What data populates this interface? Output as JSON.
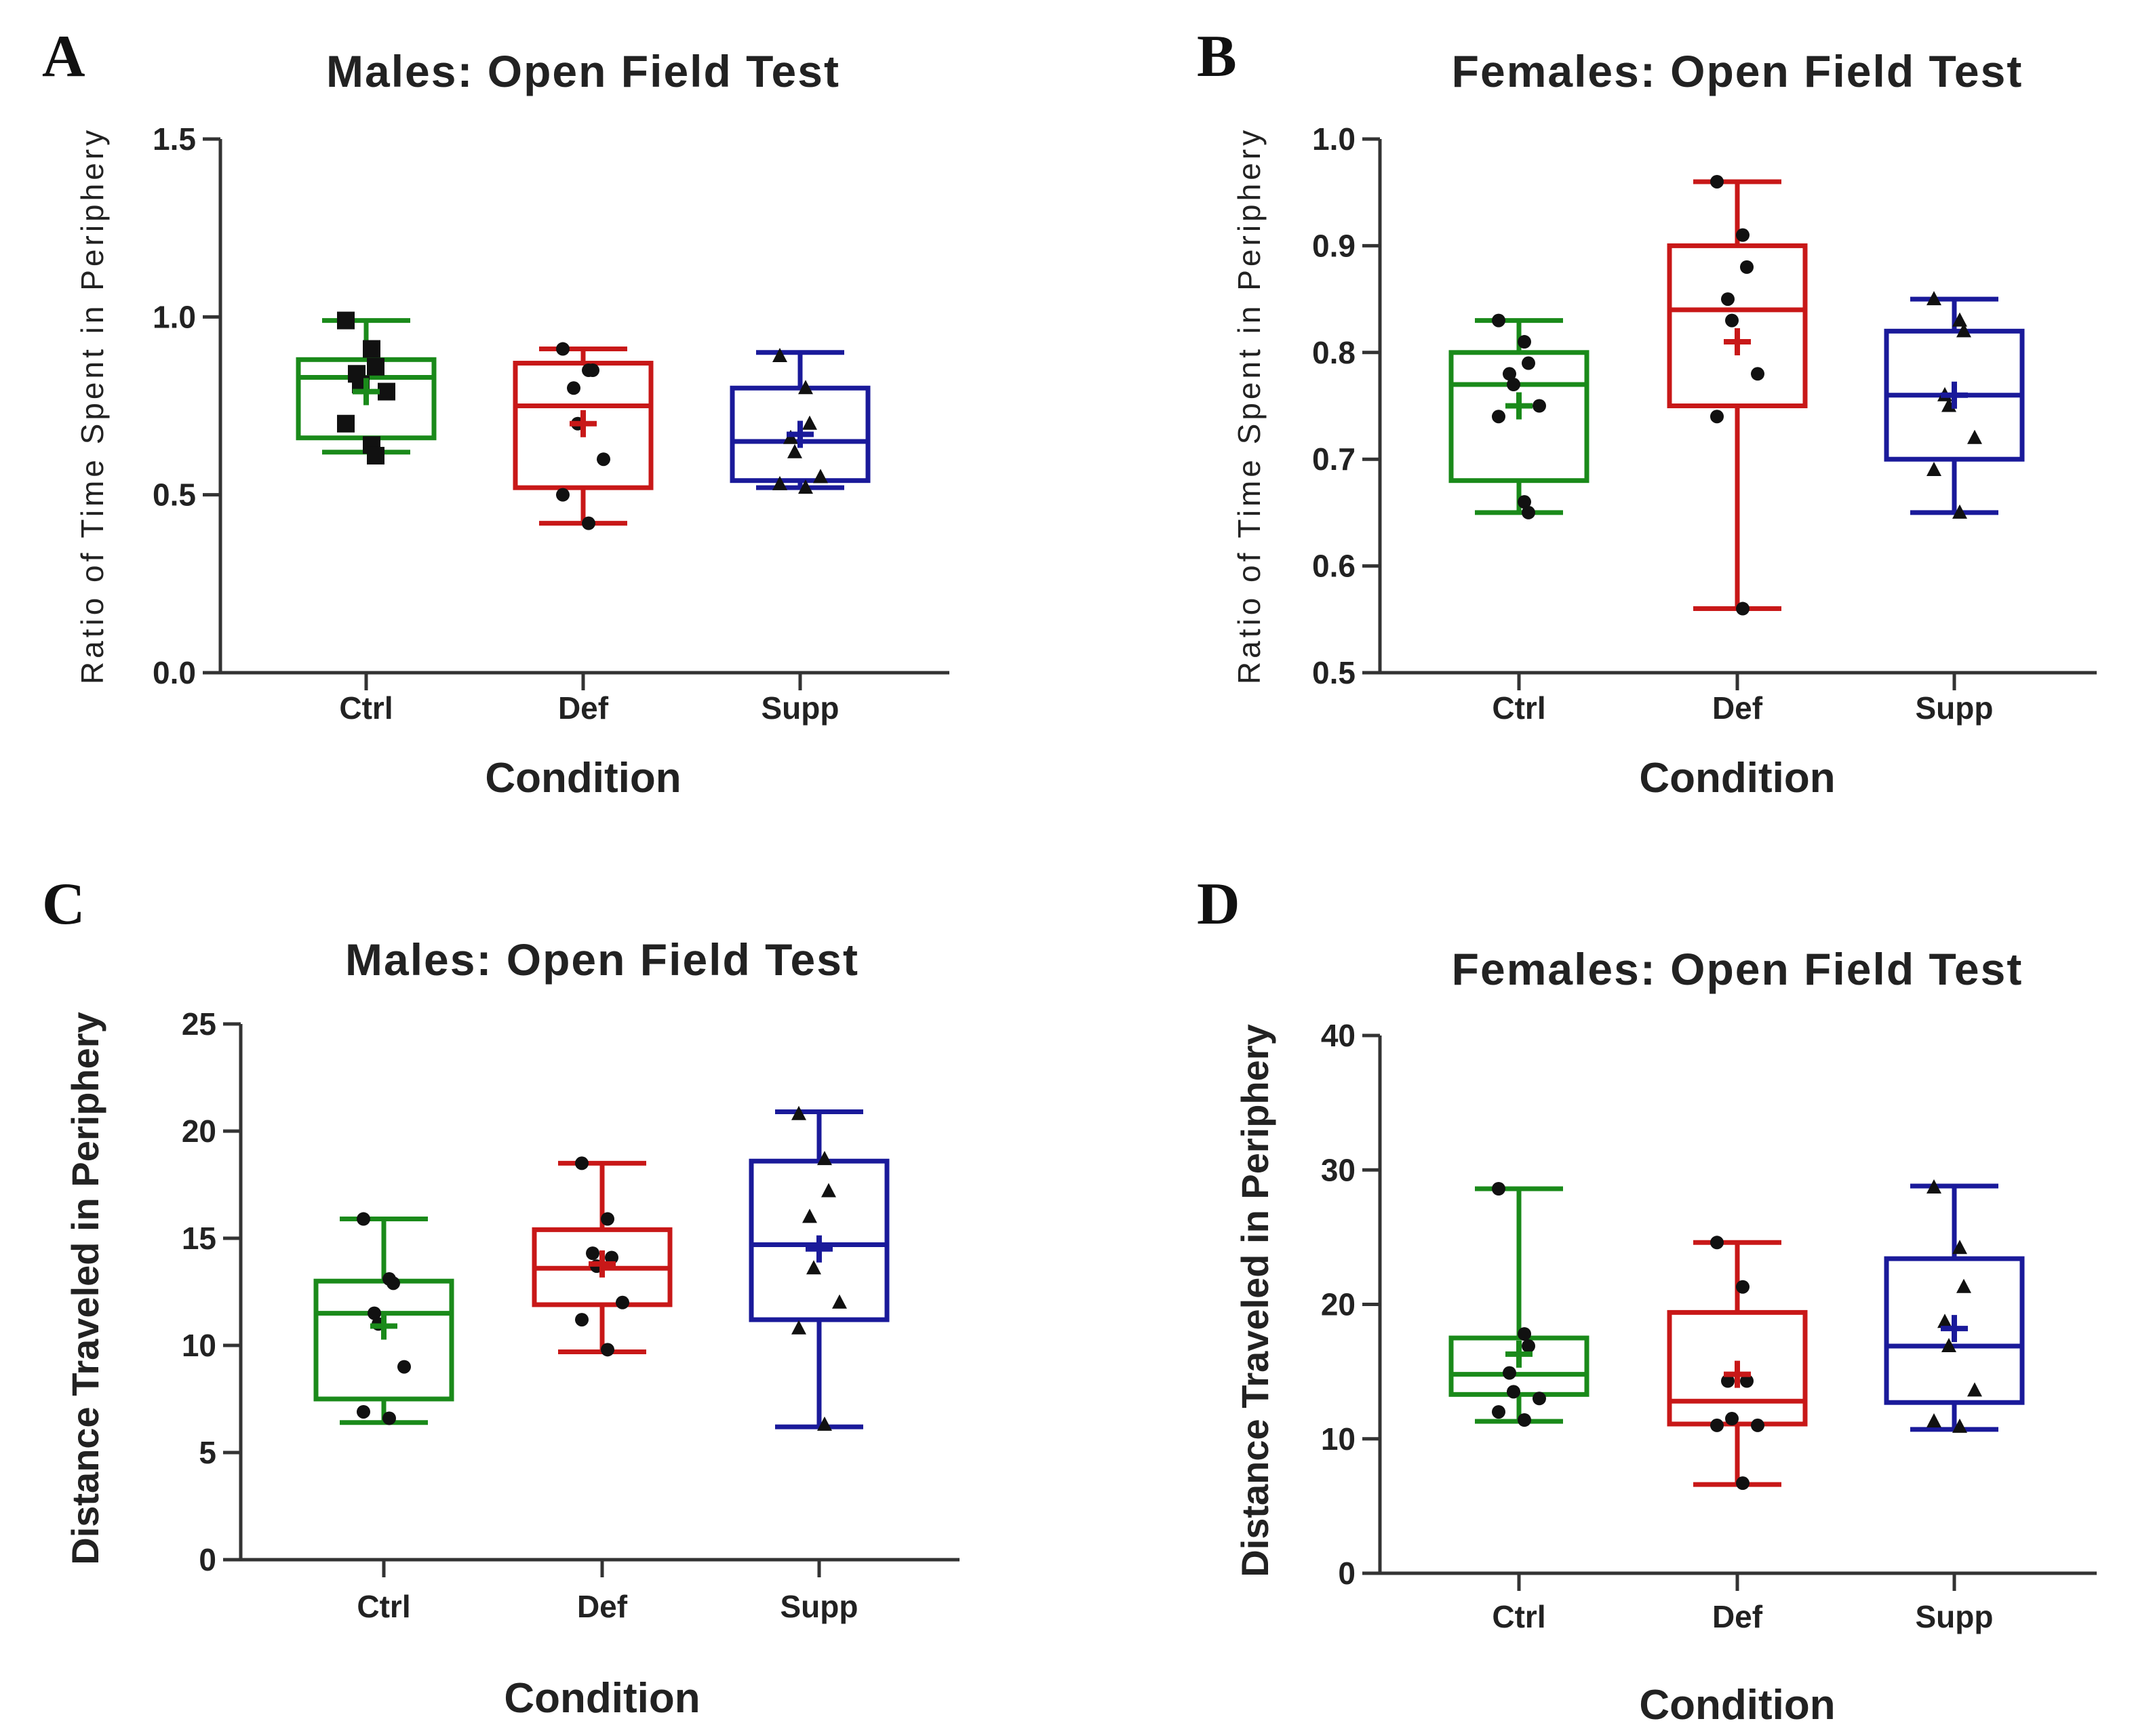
{
  "chart_data": [
    {
      "panel": "A",
      "type": "box",
      "title": "Males: Open Field Test",
      "xlabel": "Condition",
      "ylabel": "Ratio of Time Spent in Periphery",
      "ylim": [
        0,
        1.5
      ],
      "yticks": [
        0.0,
        0.5,
        1.0,
        1.5
      ],
      "ytick_labels": [
        "0.0",
        "0.5",
        "1.0",
        "1.5"
      ],
      "categories": [
        "Ctrl",
        "Def",
        "Supp"
      ],
      "boxes": [
        {
          "name": "Ctrl",
          "color": "#1a8a1a",
          "min": 0.62,
          "q1": 0.66,
          "median": 0.83,
          "q3": 0.88,
          "max": 0.99,
          "mean": 0.79,
          "marker": "square",
          "points": [
            0.99,
            0.91,
            0.86,
            0.84,
            0.81,
            0.79,
            0.7,
            0.64,
            0.61
          ]
        },
        {
          "name": "Def",
          "color": "#c81818",
          "min": 0.42,
          "q1": 0.52,
          "median": 0.75,
          "q3": 0.87,
          "max": 0.91,
          "mean": 0.7,
          "marker": "circle",
          "points": [
            0.91,
            0.85,
            0.85,
            0.8,
            0.7,
            0.6,
            0.5,
            0.42
          ]
        },
        {
          "name": "Supp",
          "color": "#1a1a9a",
          "min": 0.52,
          "q1": 0.54,
          "median": 0.65,
          "q3": 0.8,
          "max": 0.9,
          "mean": 0.67,
          "marker": "triangle",
          "points": [
            0.89,
            0.8,
            0.7,
            0.66,
            0.62,
            0.55,
            0.53,
            0.52
          ]
        }
      ]
    },
    {
      "panel": "B",
      "type": "box",
      "title": "Females: Open Field Test",
      "xlabel": "Condition",
      "ylabel": "Ratio of Time Spent in Periphery",
      "ylim": [
        0.5,
        1.0
      ],
      "yticks": [
        0.5,
        0.6,
        0.7,
        0.8,
        0.9,
        1.0
      ],
      "ytick_labels": [
        "0.5",
        "0.6",
        "0.7",
        "0.8",
        "0.9",
        "1.0"
      ],
      "categories": [
        "Ctrl",
        "Def",
        "Supp"
      ],
      "boxes": [
        {
          "name": "Ctrl",
          "color": "#1a8a1a",
          "min": 0.65,
          "q1": 0.68,
          "median": 0.77,
          "q3": 0.8,
          "max": 0.83,
          "mean": 0.75,
          "marker": "circle",
          "points": [
            0.83,
            0.81,
            0.79,
            0.78,
            0.77,
            0.75,
            0.74,
            0.66,
            0.65
          ]
        },
        {
          "name": "Def",
          "color": "#c81818",
          "min": 0.56,
          "q1": 0.75,
          "median": 0.84,
          "q3": 0.9,
          "max": 0.96,
          "mean": 0.81,
          "marker": "circle",
          "points": [
            0.96,
            0.91,
            0.88,
            0.85,
            0.83,
            0.78,
            0.74,
            0.56
          ]
        },
        {
          "name": "Supp",
          "color": "#1a1a9a",
          "min": 0.65,
          "q1": 0.7,
          "median": 0.76,
          "q3": 0.82,
          "max": 0.85,
          "mean": 0.76,
          "marker": "triangle",
          "points": [
            0.85,
            0.83,
            0.82,
            0.76,
            0.75,
            0.72,
            0.69,
            0.65
          ]
        }
      ]
    },
    {
      "panel": "C",
      "type": "box",
      "title": "Males: Open Field Test",
      "xlabel": "Condition",
      "ylabel": "Distance Traveled in Periphery",
      "ylim": [
        0,
        25
      ],
      "yticks": [
        0,
        5,
        10,
        15,
        20,
        25
      ],
      "ytick_labels": [
        "0",
        "5",
        "10",
        "15",
        "20",
        "25"
      ],
      "categories": [
        "Ctrl",
        "Def",
        "Supp"
      ],
      "boxes": [
        {
          "name": "Ctrl",
          "color": "#1a8a1a",
          "min": 6.4,
          "q1": 7.5,
          "median": 11.5,
          "q3": 13.0,
          "max": 15.9,
          "mean": 10.9,
          "marker": "circle",
          "points": [
            15.9,
            13.1,
            12.9,
            11.5,
            11.0,
            9.0,
            6.9,
            6.6
          ]
        },
        {
          "name": "Def",
          "color": "#c81818",
          "min": 9.7,
          "q1": 11.9,
          "median": 13.6,
          "q3": 15.4,
          "max": 18.5,
          "mean": 13.8,
          "marker": "circle",
          "points": [
            18.5,
            15.9,
            14.1,
            14.3,
            13.7,
            12.0,
            11.2,
            9.8
          ]
        },
        {
          "name": "Supp",
          "color": "#1a1a9a",
          "min": 6.2,
          "q1": 11.2,
          "median": 14.7,
          "q3": 18.6,
          "max": 20.9,
          "mean": 14.5,
          "marker": "triangle",
          "points": [
            20.8,
            18.7,
            17.2,
            16.0,
            13.6,
            12.0,
            10.8,
            6.3
          ]
        }
      ]
    },
    {
      "panel": "D",
      "type": "box",
      "title": "Females: Open Field Test",
      "xlabel": "Condition",
      "ylabel": "Distance Traveled in Periphery",
      "ylim": [
        0,
        40
      ],
      "yticks": [
        0,
        10,
        20,
        30,
        40
      ],
      "ytick_labels": [
        "0",
        "10",
        "20",
        "30",
        "40"
      ],
      "categories": [
        "Ctrl",
        "Def",
        "Supp"
      ],
      "boxes": [
        {
          "name": "Ctrl",
          "color": "#1a8a1a",
          "min": 11.3,
          "q1": 13.3,
          "median": 14.8,
          "q3": 17.5,
          "max": 28.6,
          "mean": 16.3,
          "marker": "circle",
          "points": [
            28.6,
            17.8,
            16.9,
            14.9,
            13.5,
            13.0,
            12.0,
            11.4
          ]
        },
        {
          "name": "Def",
          "color": "#c81818",
          "min": 6.6,
          "q1": 11.1,
          "median": 12.8,
          "q3": 19.4,
          "max": 24.6,
          "mean": 14.8,
          "marker": "circle",
          "points": [
            24.6,
            21.3,
            14.3,
            14.3,
            11.5,
            11.0,
            11.0,
            6.7
          ]
        },
        {
          "name": "Supp",
          "color": "#1a1a9a",
          "min": 10.7,
          "q1": 12.7,
          "median": 16.9,
          "q3": 23.4,
          "max": 28.8,
          "mean": 18.2,
          "marker": "triangle",
          "points": [
            28.7,
            24.2,
            21.3,
            18.7,
            16.9,
            13.6,
            11.3,
            10.9
          ]
        }
      ]
    }
  ]
}
